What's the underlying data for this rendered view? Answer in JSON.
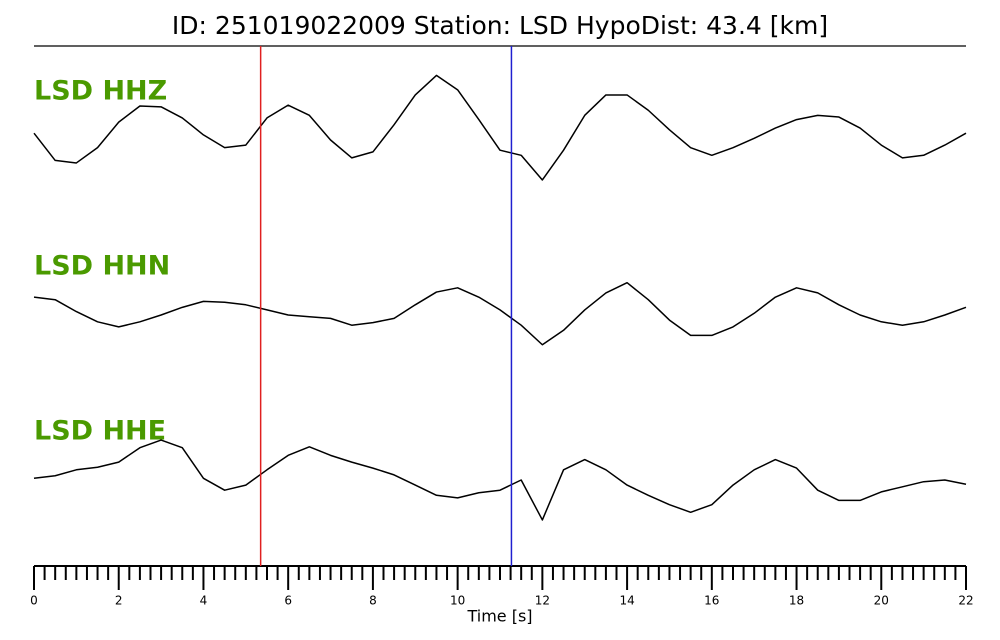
{
  "chart_data": {
    "type": "line",
    "title": "ID: 251019022009   Station: LSD   HypoDist:    43.4 [km]",
    "xlabel": "Time [s]",
    "xlim": [
      0,
      22
    ],
    "xticks": [
      0,
      2,
      4,
      6,
      8,
      10,
      12,
      14,
      16,
      18,
      20,
      22
    ],
    "xminorticks": [
      0.25,
      0.5,
      0.75,
      1,
      1.25,
      1.5,
      1.75,
      2.25,
      2.5,
      2.75,
      3,
      3.25,
      3.5,
      3.75,
      4.25,
      4.5,
      4.75,
      5,
      5.25,
      5.5,
      5.75,
      6.25,
      6.5,
      6.75,
      7,
      7.25,
      7.5,
      7.75,
      8.25,
      8.5,
      8.75,
      9,
      9.25,
      9.5,
      9.75,
      10.25,
      10.5,
      10.75,
      11,
      11.25,
      11.5,
      11.75,
      12.25,
      12.5,
      12.75,
      13,
      13.25,
      13.5,
      13.75,
      14.25,
      14.5,
      14.75,
      15,
      15.25,
      15.5,
      15.75,
      16.25,
      16.5,
      16.75,
      17,
      17.25,
      17.5,
      17.75,
      18.25,
      18.5,
      18.75,
      19,
      19.25,
      19.5,
      19.75,
      20.25,
      20.5,
      20.75,
      21,
      21.25,
      21.5,
      21.75
    ],
    "ylim": [
      -1,
      1
    ],
    "label_color": "#4a9a00",
    "picks": [
      {
        "time": 5.35,
        "color": "#e02020"
      },
      {
        "time": 11.27,
        "color": "#1f1fd0"
      }
    ],
    "x": [
      0,
      0.5,
      1,
      1.5,
      2,
      2.5,
      3,
      3.5,
      4,
      4.5,
      5,
      5.5,
      6,
      6.5,
      7,
      7.5,
      8,
      8.5,
      9,
      9.5,
      10,
      10.5,
      11,
      11.5,
      12,
      12.5,
      13,
      13.5,
      14,
      14.5,
      15,
      15.5,
      16,
      16.5,
      17,
      17.5,
      18,
      18.5,
      19,
      19.5,
      20,
      20.5,
      21,
      21.5,
      22
    ],
    "series": [
      {
        "name": "LSD HHZ",
        "color": "#000000",
        "values": [
          0.08,
          -0.24,
          -0.27,
          -0.09,
          0.21,
          0.4,
          0.39,
          0.26,
          0.06,
          -0.09,
          -0.06,
          0.26,
          0.41,
          0.29,
          0,
          -0.21,
          -0.14,
          0.18,
          0.53,
          0.76,
          0.59,
          0.24,
          -0.12,
          -0.18,
          -0.47,
          -0.12,
          0.29,
          0.53,
          0.53,
          0.35,
          0.12,
          -0.09,
          -0.18,
          -0.09,
          0.02,
          0.14,
          0.24,
          0.29,
          0.27,
          0.14,
          -0.06,
          -0.21,
          -0.18,
          -0.06,
          0.08
        ]
      },
      {
        "name": "LSD HHN",
        "color": "#000000",
        "values": [
          0.21,
          0.18,
          0.04,
          -0.08,
          -0.14,
          -0.08,
          0,
          0.09,
          0.16,
          0.15,
          0.12,
          0.06,
          0,
          -0.02,
          -0.04,
          -0.12,
          -0.09,
          -0.04,
          0.12,
          0.27,
          0.32,
          0.21,
          0.06,
          -0.12,
          -0.35,
          -0.18,
          0.06,
          0.26,
          0.38,
          0.18,
          -0.06,
          -0.24,
          -0.24,
          -0.14,
          0.02,
          0.21,
          0.32,
          0.26,
          0.12,
          0,
          -0.08,
          -0.12,
          -0.08,
          0,
          0.09
        ]
      },
      {
        "name": "LSD HHE",
        "color": "#000000",
        "values": [
          0.02,
          0.05,
          0.12,
          0.15,
          0.21,
          0.38,
          0.47,
          0.38,
          0.02,
          -0.12,
          -0.06,
          0.12,
          0.29,
          0.39,
          0.29,
          0.21,
          0.14,
          0.06,
          -0.06,
          -0.18,
          -0.21,
          -0.15,
          -0.12,
          0,
          -0.47,
          0.12,
          0.24,
          0.12,
          -0.06,
          -0.18,
          -0.29,
          -0.38,
          -0.29,
          -0.06,
          0.12,
          0.24,
          0.14,
          -0.12,
          -0.24,
          -0.24,
          -0.14,
          -0.08,
          -0.02,
          0,
          -0.05
        ]
      }
    ]
  }
}
